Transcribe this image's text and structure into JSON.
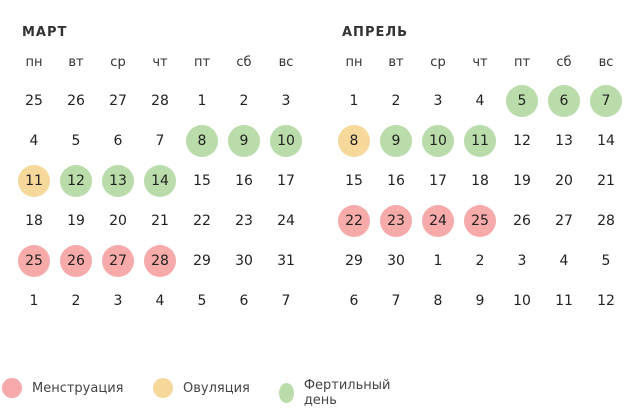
{
  "weekdays": [
    "пн",
    "вт",
    "ср",
    "чт",
    "пт",
    "сб",
    "вс"
  ],
  "colors": {
    "menstruation": "#f6aaa9",
    "ovulation": "#f6d89a",
    "fertile": "#b9dcaa"
  },
  "months": [
    {
      "title": "МАРТ",
      "weeks": [
        [
          {
            "d": "25"
          },
          {
            "d": "26"
          },
          {
            "d": "27"
          },
          {
            "d": "28"
          },
          {
            "d": "1"
          },
          {
            "d": "2"
          },
          {
            "d": "3"
          }
        ],
        [
          {
            "d": "4"
          },
          {
            "d": "5"
          },
          {
            "d": "6"
          },
          {
            "d": "7"
          },
          {
            "d": "8",
            "t": "fertile"
          },
          {
            "d": "9",
            "t": "fertile"
          },
          {
            "d": "10",
            "t": "fertile"
          }
        ],
        [
          {
            "d": "11",
            "t": "ovulation"
          },
          {
            "d": "12",
            "t": "fertile"
          },
          {
            "d": "13",
            "t": "fertile"
          },
          {
            "d": "14",
            "t": "fertile"
          },
          {
            "d": "15"
          },
          {
            "d": "16"
          },
          {
            "d": "17"
          }
        ],
        [
          {
            "d": "18"
          },
          {
            "d": "19"
          },
          {
            "d": "20"
          },
          {
            "d": "21"
          },
          {
            "d": "22"
          },
          {
            "d": "23"
          },
          {
            "d": "24"
          }
        ],
        [
          {
            "d": "25",
            "t": "menstruation"
          },
          {
            "d": "26",
            "t": "menstruation"
          },
          {
            "d": "27",
            "t": "menstruation"
          },
          {
            "d": "28",
            "t": "menstruation"
          },
          {
            "d": "29"
          },
          {
            "d": "30"
          },
          {
            "d": "31"
          }
        ],
        [
          {
            "d": "1"
          },
          {
            "d": "2"
          },
          {
            "d": "3"
          },
          {
            "d": "4"
          },
          {
            "d": "5"
          },
          {
            "d": "6"
          },
          {
            "d": "7"
          }
        ]
      ]
    },
    {
      "title": "АПРЕЛЬ",
      "weeks": [
        [
          {
            "d": "1"
          },
          {
            "d": "2"
          },
          {
            "d": "3"
          },
          {
            "d": "4"
          },
          {
            "d": "5",
            "t": "fertile"
          },
          {
            "d": "6",
            "t": "fertile"
          },
          {
            "d": "7",
            "t": "fertile"
          }
        ],
        [
          {
            "d": "8",
            "t": "ovulation"
          },
          {
            "d": "9",
            "t": "fertile"
          },
          {
            "d": "10",
            "t": "fertile"
          },
          {
            "d": "11",
            "t": "fertile"
          },
          {
            "d": "12"
          },
          {
            "d": "13"
          },
          {
            "d": "14"
          }
        ],
        [
          {
            "d": "15"
          },
          {
            "d": "16"
          },
          {
            "d": "17"
          },
          {
            "d": "18"
          },
          {
            "d": "19"
          },
          {
            "d": "20"
          },
          {
            "d": "21"
          }
        ],
        [
          {
            "d": "22",
            "t": "menstruation"
          },
          {
            "d": "23",
            "t": "menstruation"
          },
          {
            "d": "24",
            "t": "menstruation"
          },
          {
            "d": "25",
            "t": "menstruation"
          },
          {
            "d": "26"
          },
          {
            "d": "27"
          },
          {
            "d": "28"
          }
        ],
        [
          {
            "d": "29"
          },
          {
            "d": "30"
          },
          {
            "d": "1"
          },
          {
            "d": "2"
          },
          {
            "d": "3"
          },
          {
            "d": "4"
          },
          {
            "d": "5"
          }
        ],
        [
          {
            "d": "6"
          },
          {
            "d": "7"
          },
          {
            "d": "8"
          },
          {
            "d": "9"
          },
          {
            "d": "10"
          },
          {
            "d": "11"
          },
          {
            "d": "12"
          }
        ]
      ]
    }
  ],
  "legend": [
    {
      "type": "menstruation",
      "label": "Менструация"
    },
    {
      "type": "ovulation",
      "label": "Овуляция"
    },
    {
      "type": "fertile",
      "label": "Фертильный день"
    }
  ]
}
